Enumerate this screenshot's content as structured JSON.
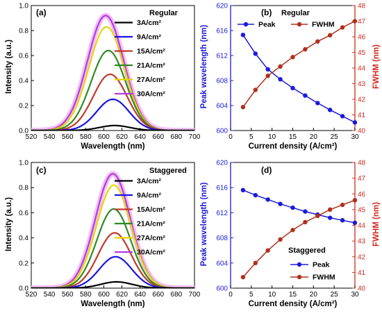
{
  "colors": {
    "peak": "#1a1adb",
    "fwhm": "#b0301c",
    "right_axis": "#d0281e",
    "halo": "#f2c2f2",
    "spectra": [
      "#000000",
      "#1515e0",
      "#c0392b",
      "#2e8b22",
      "#e6d500",
      "#b03ae6"
    ]
  },
  "chart_data": [
    {
      "panel_label": "(a)",
      "type": "line",
      "title": "Regular",
      "xlabel": "Wavelength (nm)",
      "ylabel": "Intensity (a.u.)",
      "xlim": [
        520,
        700
      ],
      "ylim": [
        0,
        1.0
      ],
      "xticks": [
        "520",
        "540",
        "560",
        "580",
        "600",
        "620",
        "640",
        "660",
        "680",
        "700"
      ],
      "yticks": [
        "0.0",
        "0.2",
        "0.4",
        "0.6",
        "0.8",
        "1.0"
      ],
      "legend_position": "top-right",
      "series": [
        {
          "name": "3A/cm²",
          "peak_x": 612,
          "peak_y": 0.04,
          "fwhm": 40
        },
        {
          "name": "9A/cm²",
          "peak_x": 610,
          "peak_y": 0.25,
          "fwhm": 42
        },
        {
          "name": "15A/cm²",
          "peak_x": 607,
          "peak_y": 0.45,
          "fwhm": 44
        },
        {
          "name": "21A/cm²",
          "peak_x": 605,
          "peak_y": 0.64,
          "fwhm": 45
        },
        {
          "name": "27A/cm²",
          "peak_x": 603,
          "peak_y": 0.83,
          "fwhm": 46
        },
        {
          "name": "30A/cm²",
          "peak_x": 602,
          "peak_y": 0.92,
          "fwhm": 47
        }
      ]
    },
    {
      "panel_label": "(b)",
      "type": "line",
      "title": "Regular",
      "xlabel": "Current density (A/cm²)",
      "ylabel": "Peak wavelength (nm)",
      "ylabel_right": "FWHM (nm)",
      "xlim": [
        0,
        30
      ],
      "ylim": [
        600,
        620
      ],
      "ylim_right": [
        40,
        48
      ],
      "xticks": [
        "0",
        "5",
        "10",
        "15",
        "20",
        "25",
        "30"
      ],
      "yticks": [
        "600",
        "604",
        "608",
        "612",
        "616",
        "620"
      ],
      "yticks_right": [
        "40",
        "41",
        "42",
        "43",
        "44",
        "45",
        "46",
        "47",
        "48"
      ],
      "legend_position": "top",
      "x": [
        3,
        6,
        9,
        12,
        15,
        18,
        21,
        24,
        27,
        30
      ],
      "series": [
        {
          "name": "Peak",
          "axis": "left",
          "values": [
            615.3,
            612.3,
            609.8,
            608.2,
            606.8,
            605.6,
            604.4,
            603.3,
            602.3,
            601.3
          ]
        },
        {
          "name": "FWHM",
          "axis": "right",
          "values": [
            41.5,
            42.6,
            43.5,
            44.1,
            44.7,
            45.2,
            45.7,
            46.1,
            46.6,
            47.0
          ]
        }
      ]
    },
    {
      "panel_label": "(c)",
      "type": "line",
      "title": "Staggered",
      "xlabel": "Wavelength (nm)",
      "ylabel": "Intensity (a.u.)",
      "xlim": [
        520,
        700
      ],
      "ylim": [
        0,
        1.0
      ],
      "xticks": [
        "520",
        "540",
        "560",
        "580",
        "600",
        "620",
        "640",
        "660",
        "680",
        "700"
      ],
      "yticks": [
        "0.0",
        "0.2",
        "0.4",
        "0.6",
        "0.8",
        "1.0"
      ],
      "legend_position": "top-right",
      "series": [
        {
          "name": "3A/cm²",
          "peak_x": 614,
          "peak_y": 0.05,
          "fwhm": 41
        },
        {
          "name": "9A/cm²",
          "peak_x": 613,
          "peak_y": 0.25,
          "fwhm": 42
        },
        {
          "name": "15A/cm²",
          "peak_x": 612,
          "peak_y": 0.44,
          "fwhm": 43
        },
        {
          "name": "21A/cm²",
          "peak_x": 611,
          "peak_y": 0.63,
          "fwhm": 44
        },
        {
          "name": "27A/cm²",
          "peak_x": 611,
          "peak_y": 0.82,
          "fwhm": 45
        },
        {
          "name": "30A/cm²",
          "peak_x": 610,
          "peak_y": 0.91,
          "fwhm": 45.5
        }
      ]
    },
    {
      "panel_label": "(d)",
      "type": "line",
      "title": "Staggered",
      "xlabel": "Current density (A/cm²)",
      "ylabel": "Peak wavelength (nm)",
      "ylabel_right": "FWHM (nm)",
      "xlim": [
        0,
        30
      ],
      "ylim": [
        600,
        620
      ],
      "ylim_right": [
        40,
        48
      ],
      "xticks": [
        "0",
        "5",
        "10",
        "15",
        "20",
        "25",
        "30"
      ],
      "yticks": [
        "600",
        "604",
        "608",
        "612",
        "616",
        "620"
      ],
      "yticks_right": [
        "40",
        "41",
        "42",
        "43",
        "44",
        "45",
        "46",
        "47",
        "48"
      ],
      "legend_position": "bottom-right",
      "x": [
        3,
        6,
        9,
        12,
        15,
        18,
        21,
        24,
        27,
        30
      ],
      "series": [
        {
          "name": "Peak",
          "axis": "left",
          "values": [
            615.6,
            614.8,
            614.1,
            613.4,
            612.8,
            612.2,
            611.7,
            611.2,
            610.8,
            610.4
          ]
        },
        {
          "name": "FWHM",
          "axis": "right",
          "values": [
            40.7,
            41.6,
            42.4,
            43.1,
            43.7,
            44.2,
            44.6,
            45.0,
            45.3,
            45.6
          ]
        }
      ]
    }
  ]
}
